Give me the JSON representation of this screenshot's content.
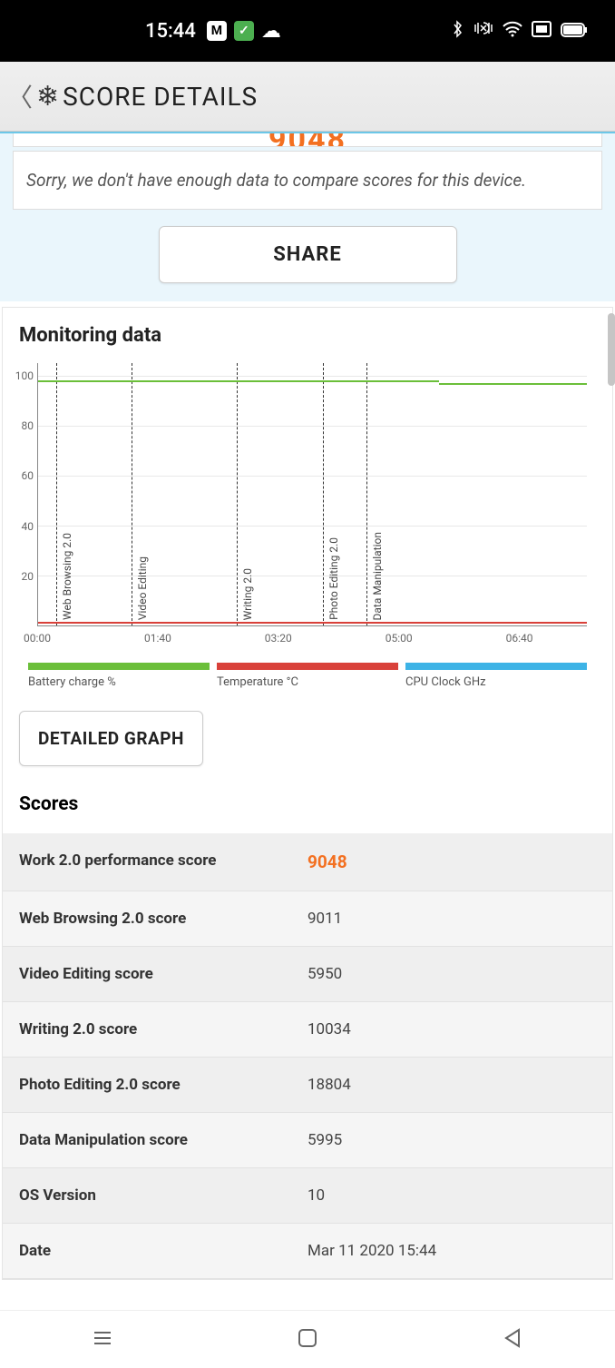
{
  "statusbar": {
    "time": "15:44"
  },
  "header": {
    "title": "SCORE DETAILS"
  },
  "top": {
    "truncated_score": "9048",
    "compare_msg": "Sorry, we don't have enough data to compare scores for this device.",
    "share_label": "SHARE"
  },
  "monitoring": {
    "title": "Monitoring data",
    "chart": {
      "type": "line",
      "ylim": [
        0,
        105
      ],
      "yticks": [
        20,
        40,
        60,
        80,
        100
      ],
      "xticks": [
        "00:00",
        "01:40",
        "03:20",
        "05:00",
        "06:40"
      ],
      "xlim_minutes": [
        0,
        7.6
      ],
      "xpositions": [
        0,
        1.667,
        3.333,
        5.0,
        6.667
      ],
      "phases": [
        {
          "label": "Web Browsing 2.0",
          "x_min": 0.25
        },
        {
          "label": "Video Editing",
          "x_min": 1.3
        },
        {
          "label": "Writing 2.0",
          "x_min": 2.75
        },
        {
          "label": "Photo Editing 2.0",
          "x_min": 3.95
        },
        {
          "label": "Data Manipulation",
          "x_min": 4.55
        }
      ],
      "battery": {
        "value": 98,
        "drop_at_min": 5.55,
        "drop_to": 97,
        "color": "#6bbf3a"
      },
      "temperature": {
        "value": 0,
        "color": "#d9413a"
      },
      "cpu": {
        "color": "#3db3e6"
      },
      "grid_color": "#e8e8e8",
      "axis_color": "#888888",
      "background_color": "#ffffff"
    },
    "legend": {
      "battery": "Battery charge %",
      "temperature": "Temperature °C",
      "cpu": "CPU Clock GHz"
    },
    "detailed_btn": "DETAILED GRAPH"
  },
  "scores": {
    "title": "Scores",
    "rows": [
      {
        "label": "Work 2.0 performance score",
        "value": "9048",
        "highlight": true
      },
      {
        "label": "Web Browsing 2.0 score",
        "value": "9011"
      },
      {
        "label": "Video Editing score",
        "value": "5950"
      },
      {
        "label": "Writing 2.0 score",
        "value": "10034"
      },
      {
        "label": "Photo Editing 2.0 score",
        "value": "18804"
      },
      {
        "label": "Data Manipulation score",
        "value": "5995"
      },
      {
        "label": "OS Version",
        "value": "10"
      },
      {
        "label": "Date",
        "value": "Mar 11 2020 15:44"
      }
    ]
  },
  "colors": {
    "accent": "#f37021",
    "header_bg": "#e8e8e8",
    "panel_bg": "#eaf6fc",
    "panel_border": "#6cc7e8"
  }
}
